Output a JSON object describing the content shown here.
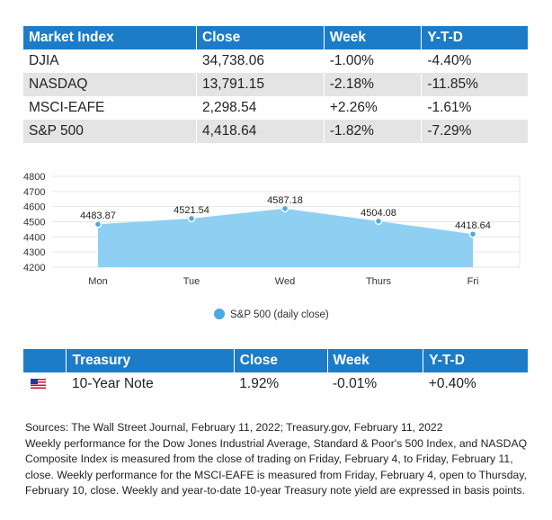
{
  "market_table": {
    "headers": [
      "Market Index",
      "Close",
      "Week",
      "Y-T-D"
    ],
    "rows": [
      {
        "index": "DJIA",
        "close": "34,738.06",
        "week": "-1.00%",
        "ytd": "-4.40%"
      },
      {
        "index": "NASDAQ",
        "close": "13,791.15",
        "week": "-2.18%",
        "ytd": "-11.85%"
      },
      {
        "index": "MSCI-EAFE",
        "close": "2,298.54",
        "week": "+2.26%",
        "ytd": "-1.61%"
      },
      {
        "index": "S&P 500",
        "close": "4,418.64",
        "week": "-1.82%",
        "ytd": "-7.29%"
      }
    ]
  },
  "chart_data": {
    "type": "area",
    "title": "",
    "xlabel": "",
    "ylabel": "",
    "categories": [
      "Mon",
      "Tue",
      "Wed",
      "Thurs",
      "Fri"
    ],
    "series": [
      {
        "name": "S&P 500 (daily close)",
        "values": [
          4483.87,
          4521.54,
          4587.18,
          4504.08,
          4418.64
        ],
        "labels": [
          "4483.87",
          "4521.54",
          "4587.18",
          "4504.08",
          "4418.64"
        ]
      }
    ],
    "ylim": [
      4200,
      4800
    ],
    "yticks": [
      4200,
      4300,
      4400,
      4500,
      4600,
      4700,
      4800
    ],
    "grid": true,
    "legend": "bottom",
    "fill_color": "#8ecff2",
    "point_color": "#4aa9e4"
  },
  "treasury_table": {
    "headers": [
      "",
      "Treasury",
      "Close",
      "Week",
      "Y-T-D"
    ],
    "row": {
      "flag": "us-flag-icon",
      "name": "10-Year Note",
      "close": "1.92%",
      "week": "-0.01%",
      "ytd": "+0.40%"
    }
  },
  "notes": [
    "Sources: The Wall Street Journal, February 11, 2022; Treasury.gov, February 11, 2022",
    "Weekly performance for the Dow Jones Industrial Average, Standard & Poor's 500 Index, and NASDAQ Composite Index is measured from the close of trading on Friday, February 4, to Friday, February 11, close. Weekly performance for the MSCI-EAFE is measured from Friday, February 4, open to Thursday, February 10, close. Weekly and year-to-date 10-year Treasury note yield are expressed in basis points."
  ],
  "colors": {
    "header_bg": "#1c7cc8",
    "row_alt": "#e4e4e4"
  }
}
